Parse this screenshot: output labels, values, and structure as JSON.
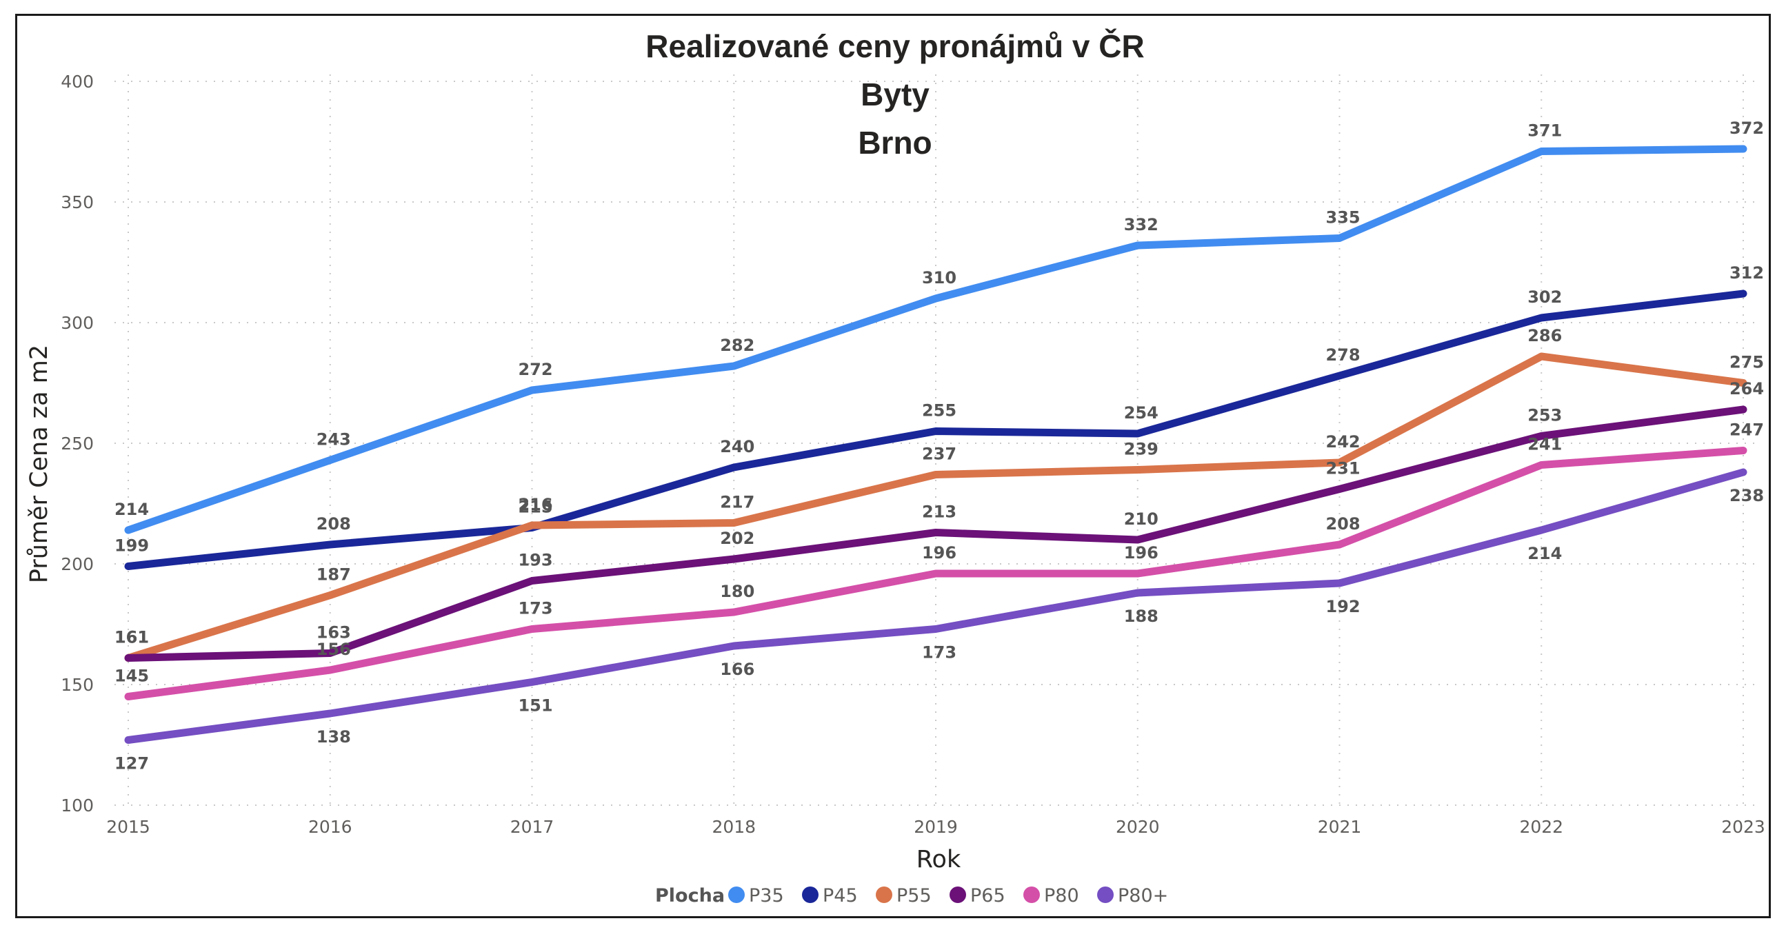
{
  "chart_data": {
    "type": "line",
    "title_lines": [
      "Realizované ceny pronájmů v ČR",
      "Byty",
      "Brno"
    ],
    "xlabel": "Rok",
    "ylabel": "Průměr Cena za m2",
    "x": [
      2015,
      2016,
      2017,
      2018,
      2019,
      2020,
      2021,
      2022,
      2023
    ],
    "ylim": [
      100,
      400
    ],
    "yticks": [
      100,
      150,
      200,
      250,
      300,
      350,
      400
    ],
    "grid": true,
    "legend": {
      "title": "Plocha",
      "position": "bottom-center"
    },
    "series": [
      {
        "name": "P35",
        "color": "#418cf0",
        "values": [
          214,
          243,
          272,
          282,
          310,
          332,
          335,
          371,
          372
        ]
      },
      {
        "name": "P45",
        "color": "#1a2799",
        "values": [
          199,
          208,
          215,
          240,
          255,
          254,
          278,
          302,
          312
        ]
      },
      {
        "name": "P55",
        "color": "#d9744a",
        "values": [
          161,
          187,
          216,
          217,
          237,
          239,
          242,
          286,
          275
        ]
      },
      {
        "name": "P65",
        "color": "#6b1178",
        "values": [
          161,
          163,
          193,
          202,
          213,
          210,
          231,
          253,
          264
        ]
      },
      {
        "name": "P80",
        "color": "#d44fa8",
        "values": [
          145,
          156,
          173,
          180,
          196,
          196,
          208,
          241,
          247
        ]
      },
      {
        "name": "P80+",
        "color": "#744ec2",
        "values": [
          127,
          138,
          151,
          166,
          173,
          188,
          192,
          214,
          238
        ]
      }
    ],
    "data_labels": [
      {
        "series": "P35",
        "labels": [
          "214",
          "243",
          "272",
          "282",
          "310",
          "332",
          "335",
          "371",
          "372"
        ]
      },
      {
        "series": "P45",
        "labels": [
          "199",
          "208",
          "215",
          "240",
          "255",
          "254",
          "278",
          "302",
          "312"
        ]
      },
      {
        "series": "P55",
        "labels": [
          "161",
          "187",
          "216",
          "217",
          "237",
          "239",
          "242",
          "286",
          "275"
        ]
      },
      {
        "series": "P65",
        "labels": [
          "161",
          "163",
          "193",
          "202",
          "213",
          "210",
          "231",
          "253",
          "264"
        ]
      },
      {
        "series": "P80",
        "labels": [
          "145",
          "156",
          "173",
          "180",
          "196",
          "196",
          "208",
          "241",
          "247"
        ]
      },
      {
        "series": "P80+",
        "labels": [
          "127",
          "138",
          "151",
          "166",
          "173",
          "188",
          "192",
          "214",
          "238"
        ]
      }
    ]
  }
}
